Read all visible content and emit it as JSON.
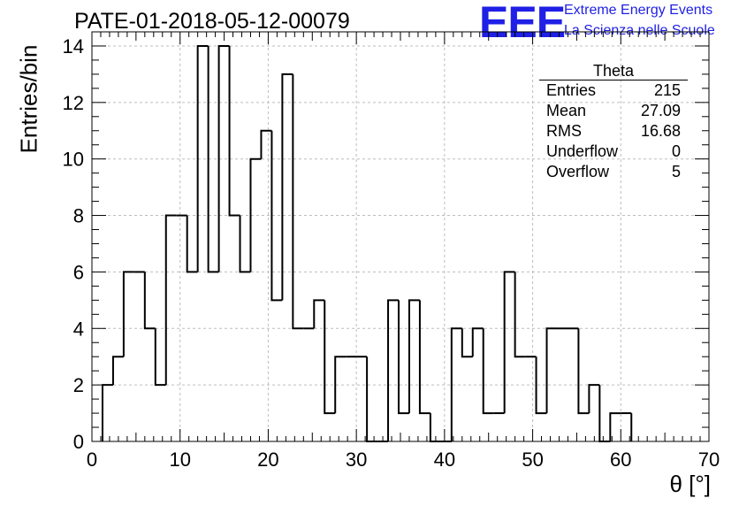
{
  "header": {
    "title": "PATE-01-2018-05-12-00079",
    "logo_text": "EEE",
    "logo_line1": "Extreme Energy Events",
    "logo_line2": "La Scienza nelle Scuole"
  },
  "stats_box": {
    "title": "Theta",
    "rows": [
      {
        "label": "Entries",
        "value": "215"
      },
      {
        "label": "Mean",
        "value": "27.09"
      },
      {
        "label": "RMS",
        "value": "16.68"
      },
      {
        "label": "Underflow",
        "value": "0"
      },
      {
        "label": "Overflow",
        "value": "5"
      }
    ]
  },
  "chart_data": {
    "type": "bar",
    "style": "step-histogram",
    "xlabel": "θ [°]",
    "ylabel": "Entries/bin",
    "xlim": [
      0,
      70
    ],
    "ylim": [
      0,
      14.5
    ],
    "x_ticks": [
      "0",
      "10",
      "20",
      "30",
      "40",
      "50",
      "60",
      "70"
    ],
    "y_ticks": [
      "0",
      "2",
      "4",
      "6",
      "8",
      "10",
      "12",
      "14"
    ],
    "grid": true,
    "bin_width": 1.2,
    "bin_edges_start": 1.2,
    "values": [
      2,
      3,
      6,
      6,
      4,
      2,
      8,
      8,
      6,
      14,
      6,
      14,
      8,
      6,
      10,
      11,
      5,
      13,
      4,
      4,
      5,
      1,
      3,
      3,
      3,
      0,
      0,
      5,
      1,
      5,
      1,
      0,
      0,
      4,
      3,
      4,
      1,
      1,
      6,
      3,
      3,
      1,
      4,
      4,
      4,
      1,
      2,
      0,
      1,
      1
    ]
  },
  "colors": {
    "logo": "#1f1fe6",
    "grid": "#bdbdbd",
    "line": "#000000"
  }
}
